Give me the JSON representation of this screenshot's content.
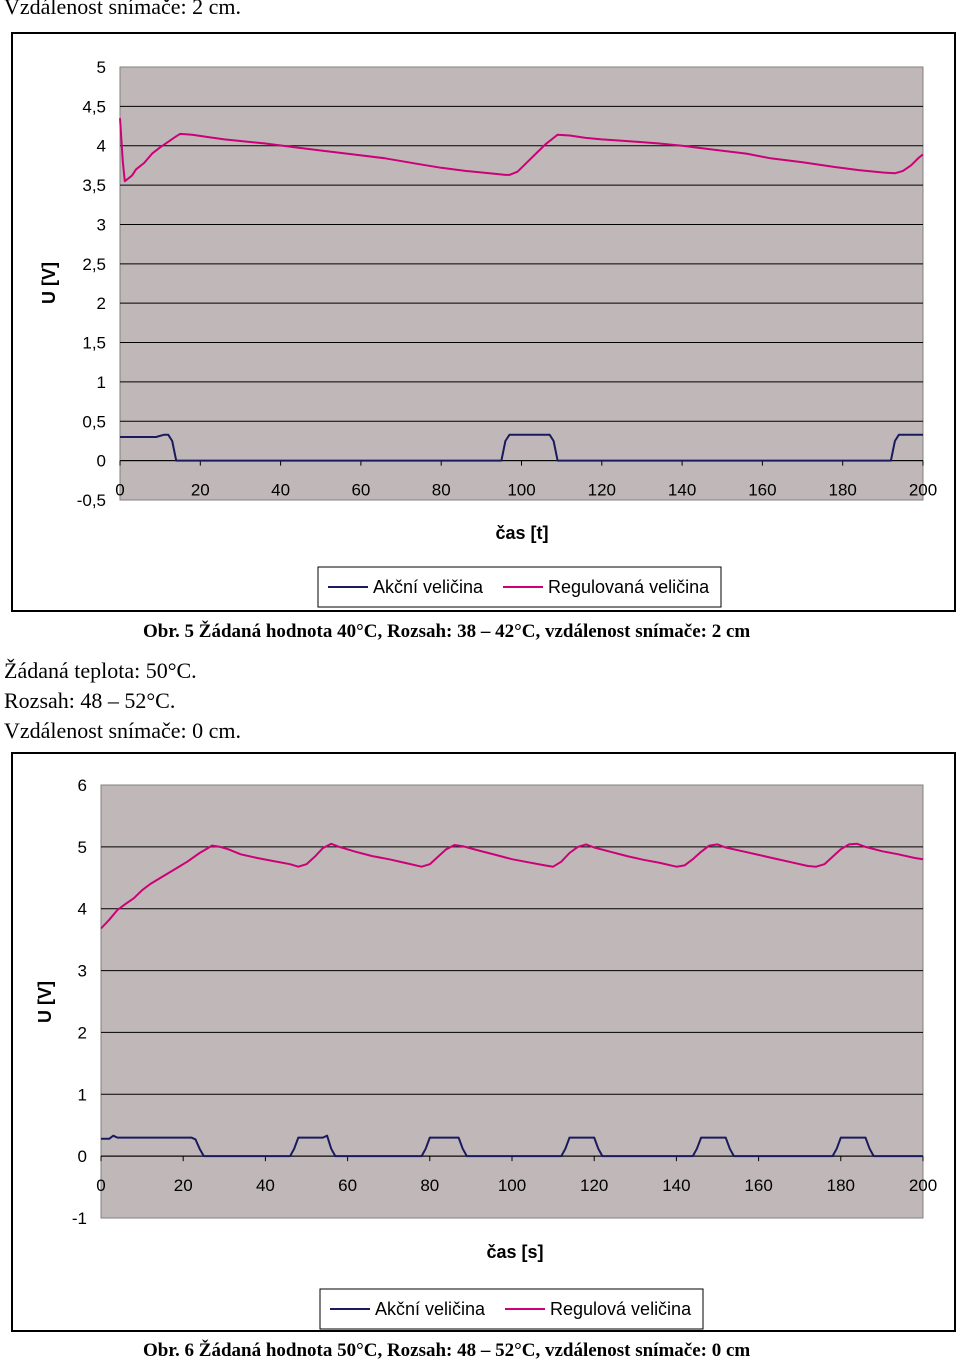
{
  "top_text": "Vzdálenost snímače: 2 cm.",
  "caption1": "Obr. 5 Žádaná hodnota 40°C, Rozsah: 38 – 42°C, vzdálenost snímače: 2 cm",
  "mid_lines": [
    "Žádaná teplota: 50°C.",
    "Rozsah: 48 – 52°C.",
    "Vzdálenost snímače: 0 cm."
  ],
  "caption2": "Obr. 6 Žádaná hodnota 50°C, Rozsah: 48 – 52°C, vzdálenost snímače: 0 cm",
  "colors": {
    "plot_bg": "#c0b8b8",
    "regulated": "#cc0077",
    "action": "#1a1a5e",
    "grid": "#000000"
  },
  "chart_data": [
    {
      "type": "line",
      "xlabel": "čas [t]",
      "ylabel": "U [V]",
      "ylim": [
        -0.5,
        5
      ],
      "xlim": [
        0,
        200
      ],
      "y_ticks": [
        "5",
        "4,5",
        "4",
        "3,5",
        "3",
        "2,5",
        "2",
        "1,5",
        "1",
        "0,5",
        "0",
        "-0,5"
      ],
      "y_tick_values": [
        5,
        4.5,
        4,
        3.5,
        3,
        2.5,
        2,
        1.5,
        1,
        0.5,
        0,
        -0.5
      ],
      "x_ticks": [
        "0",
        "20",
        "40",
        "60",
        "80",
        "100",
        "120",
        "140",
        "160",
        "180",
        "200"
      ],
      "x_tick_values": [
        0,
        20,
        40,
        60,
        80,
        100,
        120,
        140,
        160,
        180,
        200
      ],
      "grid": "horizontal",
      "legend": "bottom",
      "series": [
        {
          "name": "Akční veličina",
          "color": "#1a1a5e",
          "points": [
            [
              0,
              0.3
            ],
            [
              9,
              0.3
            ],
            [
              11,
              0.33
            ],
            [
              12,
              0.33
            ],
            [
              13,
              0.25
            ],
            [
              14,
              0
            ],
            [
              95,
              0
            ],
            [
              96,
              0.25
            ],
            [
              97,
              0.33
            ],
            [
              107,
              0.33
            ],
            [
              108,
              0.25
            ],
            [
              109,
              0
            ],
            [
              192,
              0
            ],
            [
              193,
              0.25
            ],
            [
              194,
              0.33
            ],
            [
              200,
              0.33
            ]
          ]
        },
        {
          "name": "Regulovaná veličina",
          "color": "#cc0077",
          "points": [
            [
              0,
              4.35
            ],
            [
              0.7,
              3.8
            ],
            [
              1.2,
              3.55
            ],
            [
              3,
              3.62
            ],
            [
              4,
              3.7
            ],
            [
              6,
              3.78
            ],
            [
              8,
              3.9
            ],
            [
              10,
              3.98
            ],
            [
              12,
              4.05
            ],
            [
              14,
              4.12
            ],
            [
              15,
              4.15
            ],
            [
              18,
              4.14
            ],
            [
              22,
              4.11
            ],
            [
              26,
              4.08
            ],
            [
              30,
              4.06
            ],
            [
              36,
              4.03
            ],
            [
              42,
              3.99
            ],
            [
              50,
              3.94
            ],
            [
              58,
              3.89
            ],
            [
              66,
              3.84
            ],
            [
              74,
              3.77
            ],
            [
              80,
              3.72
            ],
            [
              86,
              3.68
            ],
            [
              92,
              3.65
            ],
            [
              96,
              3.63
            ],
            [
              97,
              3.63
            ],
            [
              99,
              3.67
            ],
            [
              100,
              3.72
            ],
            [
              102,
              3.82
            ],
            [
              104,
              3.92
            ],
            [
              106,
              4.02
            ],
            [
              108,
              4.1
            ],
            [
              109,
              4.14
            ],
            [
              112,
              4.13
            ],
            [
              116,
              4.1
            ],
            [
              120,
              4.08
            ],
            [
              126,
              4.06
            ],
            [
              134,
              4.03
            ],
            [
              140,
              4.0
            ],
            [
              148,
              3.95
            ],
            [
              156,
              3.9
            ],
            [
              162,
              3.84
            ],
            [
              170,
              3.79
            ],
            [
              178,
              3.73
            ],
            [
              184,
              3.69
            ],
            [
              190,
              3.66
            ],
            [
              193,
              3.65
            ],
            [
              195,
              3.68
            ],
            [
              197,
              3.75
            ],
            [
              199,
              3.85
            ],
            [
              200,
              3.89
            ]
          ]
        }
      ]
    },
    {
      "type": "line",
      "xlabel": "čas [s]",
      "ylabel": "U [V]",
      "ylim": [
        -1,
        6
      ],
      "xlim": [
        0,
        200
      ],
      "y_ticks": [
        "6",
        "5",
        "4",
        "3",
        "2",
        "1",
        "0",
        "-1"
      ],
      "y_tick_values": [
        6,
        5,
        4,
        3,
        2,
        1,
        0,
        -1
      ],
      "x_ticks": [
        "0",
        "20",
        "40",
        "60",
        "80",
        "100",
        "120",
        "140",
        "160",
        "180",
        "200"
      ],
      "x_tick_values": [
        0,
        20,
        40,
        60,
        80,
        100,
        120,
        140,
        160,
        180,
        200
      ],
      "grid": "horizontal",
      "legend": "bottom",
      "series": [
        {
          "name": "Akční veličina",
          "color": "#1a1a5e",
          "points": [
            [
              0,
              0.28
            ],
            [
              2,
              0.28
            ],
            [
              3,
              0.33
            ],
            [
              4,
              0.3
            ],
            [
              22,
              0.3
            ],
            [
              23,
              0.27
            ],
            [
              24,
              0.12
            ],
            [
              25,
              0
            ],
            [
              46,
              0
            ],
            [
              47,
              0.12
            ],
            [
              48,
              0.3
            ],
            [
              54,
              0.3
            ],
            [
              55,
              0.33
            ],
            [
              56,
              0.12
            ],
            [
              57,
              0
            ],
            [
              78,
              0
            ],
            [
              79,
              0.12
            ],
            [
              80,
              0.3
            ],
            [
              87,
              0.3
            ],
            [
              88,
              0.12
            ],
            [
              89,
              0
            ],
            [
              112,
              0
            ],
            [
              113,
              0.12
            ],
            [
              114,
              0.3
            ],
            [
              120,
              0.3
            ],
            [
              121,
              0.12
            ],
            [
              122,
              0
            ],
            [
              144,
              0
            ],
            [
              145,
              0.12
            ],
            [
              146,
              0.3
            ],
            [
              152,
              0.3
            ],
            [
              153,
              0.12
            ],
            [
              154,
              0
            ],
            [
              178,
              0
            ],
            [
              179,
              0.12
            ],
            [
              180,
              0.3
            ],
            [
              186,
              0.3
            ],
            [
              187,
              0.12
            ],
            [
              188,
              0
            ],
            [
              200,
              0
            ]
          ]
        },
        {
          "name": "Regulová veličina",
          "color": "#cc0077",
          "points": [
            [
              0,
              3.68
            ],
            [
              2,
              3.82
            ],
            [
              4,
              3.98
            ],
            [
              6,
              4.08
            ],
            [
              8,
              4.17
            ],
            [
              10,
              4.3
            ],
            [
              12,
              4.4
            ],
            [
              15,
              4.52
            ],
            [
              18,
              4.64
            ],
            [
              21,
              4.76
            ],
            [
              24,
              4.9
            ],
            [
              26,
              4.98
            ],
            [
              27,
              5.02
            ],
            [
              29,
              5.0
            ],
            [
              31,
              4.96
            ],
            [
              34,
              4.88
            ],
            [
              38,
              4.82
            ],
            [
              42,
              4.77
            ],
            [
              46,
              4.72
            ],
            [
              48,
              4.68
            ],
            [
              50,
              4.72
            ],
            [
              52,
              4.84
            ],
            [
              54,
              4.98
            ],
            [
              56,
              5.05
            ],
            [
              58,
              5.0
            ],
            [
              62,
              4.92
            ],
            [
              66,
              4.85
            ],
            [
              70,
              4.8
            ],
            [
              74,
              4.74
            ],
            [
              78,
              4.68
            ],
            [
              80,
              4.72
            ],
            [
              82,
              4.84
            ],
            [
              84,
              4.96
            ],
            [
              86,
              5.03
            ],
            [
              88,
              5.01
            ],
            [
              92,
              4.94
            ],
            [
              96,
              4.87
            ],
            [
              100,
              4.8
            ],
            [
              104,
              4.75
            ],
            [
              108,
              4.7
            ],
            [
              110,
              4.68
            ],
            [
              112,
              4.76
            ],
            [
              114,
              4.9
            ],
            [
              116,
              5.0
            ],
            [
              118,
              5.04
            ],
            [
              120,
              4.99
            ],
            [
              124,
              4.92
            ],
            [
              128,
              4.85
            ],
            [
              132,
              4.79
            ],
            [
              136,
              4.74
            ],
            [
              140,
              4.68
            ],
            [
              142,
              4.7
            ],
            [
              144,
              4.8
            ],
            [
              146,
              4.92
            ],
            [
              148,
              5.02
            ],
            [
              150,
              5.04
            ],
            [
              152,
              4.99
            ],
            [
              156,
              4.93
            ],
            [
              160,
              4.87
            ],
            [
              164,
              4.81
            ],
            [
              168,
              4.75
            ],
            [
              172,
              4.69
            ],
            [
              174,
              4.68
            ],
            [
              176,
              4.72
            ],
            [
              178,
              4.84
            ],
            [
              180,
              4.96
            ],
            [
              182,
              5.04
            ],
            [
              184,
              5.05
            ],
            [
              186,
              5.0
            ],
            [
              190,
              4.93
            ],
            [
              194,
              4.88
            ],
            [
              198,
              4.82
            ],
            [
              200,
              4.8
            ]
          ]
        }
      ]
    }
  ]
}
